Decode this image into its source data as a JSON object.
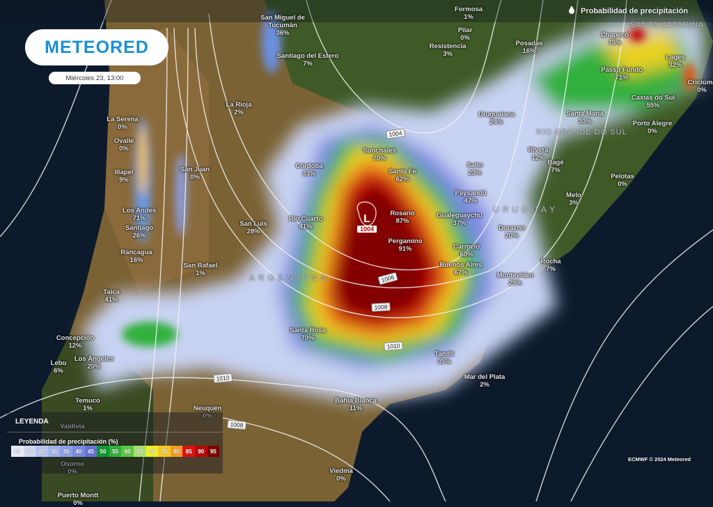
{
  "header": {
    "title": "Probabilidad de precipitación",
    "title_icon": "raindrop-icon"
  },
  "brand": {
    "logo": "METEORED",
    "datetime": "Miércoles 23, 13:00"
  },
  "legend": {
    "title": "LEYENDA",
    "subtitle": "Probabilidad de precipitación (%)",
    "steps": [
      {
        "v": "15",
        "c": "#e6eaf6"
      },
      {
        "v": "20",
        "c": "#d0d8f2"
      },
      {
        "v": "25",
        "c": "#b8c4ee"
      },
      {
        "v": "30",
        "c": "#a2b2ea"
      },
      {
        "v": "35",
        "c": "#8e9ee6"
      },
      {
        "v": "40",
        "c": "#7a8ae0"
      },
      {
        "v": "45",
        "c": "#6672d8"
      },
      {
        "v": "50",
        "c": "#0c9a2c"
      },
      {
        "v": "55",
        "c": "#30b03c"
      },
      {
        "v": "60",
        "c": "#5cc842"
      },
      {
        "v": "65",
        "c": "#a8e070"
      },
      {
        "v": "70",
        "c": "#eeee22"
      },
      {
        "v": "75",
        "c": "#f6c822"
      },
      {
        "v": "80",
        "c": "#f69a20"
      },
      {
        "v": "85",
        "c": "#de1010"
      },
      {
        "v": "90",
        "c": "#b60808"
      },
      {
        "v": "95",
        "c": "#7e0000"
      }
    ]
  },
  "credit": "ECMWF © 2024 Meteored",
  "low": {
    "symbol": "L",
    "pressure": "1004"
  },
  "isobars": [
    "1004",
    "1006",
    "1008",
    "1010",
    "1010",
    "1008"
  ],
  "regions": [
    "ARGENTINA",
    "URUGUAY",
    "SANTA CATARINA",
    "RIO GRANDE DO SUL"
  ],
  "cities": [
    {
      "name": "Formosa",
      "value": "1%"
    },
    {
      "name": "Pilar",
      "value": "0%"
    },
    {
      "name": "Resistencia",
      "value": "3%"
    },
    {
      "name": "Posadas",
      "value": "16%"
    },
    {
      "name": "Chapecó",
      "value": "75%"
    },
    {
      "name": "Lages",
      "value": "32%"
    },
    {
      "name": "Criciúma",
      "value": "0%"
    },
    {
      "name": "Passo Fundo",
      "value": "71%"
    },
    {
      "name": "Caxias do Sul",
      "value": "55%"
    },
    {
      "name": "Santa Maria",
      "value": "30%"
    },
    {
      "name": "Porto Alegre",
      "value": "0%"
    },
    {
      "name": "Uruguaiana",
      "value": "24%"
    },
    {
      "name": "San Miguel de\nTucumán",
      "value": "36%"
    },
    {
      "name": "Santiago del Estero",
      "value": "7%"
    },
    {
      "name": "La Rioja",
      "value": "2%"
    },
    {
      "name": "Sunchales",
      "value": "70%"
    },
    {
      "name": "Santa Fe",
      "value": "62%"
    },
    {
      "name": "Córdoba",
      "value": "33%"
    },
    {
      "name": "Salto",
      "value": "23%"
    },
    {
      "name": "Paysandú",
      "value": "47%"
    },
    {
      "name": "Rivera",
      "value": "12%"
    },
    {
      "name": "Bagé",
      "value": "7%"
    },
    {
      "name": "Pelotas",
      "value": "0%"
    },
    {
      "name": "Melo",
      "value": "3%"
    },
    {
      "name": "Río Cuarto",
      "value": "41%"
    },
    {
      "name": "San Luis",
      "value": "28%"
    },
    {
      "name": "Rosario",
      "value": "87%"
    },
    {
      "name": "Gualeguaychu",
      "value": "37%"
    },
    {
      "name": "Durazno",
      "value": "20%"
    },
    {
      "name": "Pergamino",
      "value": "91%"
    },
    {
      "name": "Carmelo",
      "value": "60%"
    },
    {
      "name": "Buenos Aires",
      "value": "67%"
    },
    {
      "name": "Montevideo",
      "value": "25%"
    },
    {
      "name": "Rocha",
      "value": "7%"
    },
    {
      "name": "San Rafael",
      "value": "1%"
    },
    {
      "name": "La Serena",
      "value": "0%"
    },
    {
      "name": "Ovalle",
      "value": "0%"
    },
    {
      "name": "Illapel",
      "value": "9%"
    },
    {
      "name": "San Juan",
      "value": "0%"
    },
    {
      "name": "Los Andes",
      "value": "71%"
    },
    {
      "name": "Santiago",
      "value": "26%"
    },
    {
      "name": "Rancagua",
      "value": "16%"
    },
    {
      "name": "Talca",
      "value": "41%"
    },
    {
      "name": "Concepción",
      "value": "12%"
    },
    {
      "name": "Los Ángeles",
      "value": "20%"
    },
    {
      "name": "Lebu",
      "value": "6%"
    },
    {
      "name": "Temuco",
      "value": "1%"
    },
    {
      "name": "Neuquén",
      "value": "0%"
    },
    {
      "name": "Santa Rosa",
      "value": "70%"
    },
    {
      "name": "Tandil",
      "value": "35%"
    },
    {
      "name": "Mar del Plata",
      "value": "2%"
    },
    {
      "name": "Bahía Blanca",
      "value": "11%"
    },
    {
      "name": "Valdivia",
      "value": ""
    },
    {
      "name": "Osorno",
      "value": "0%"
    },
    {
      "name": "Puerto Montt",
      "value": "0%"
    },
    {
      "name": "Viedma",
      "value": "0%"
    }
  ]
}
